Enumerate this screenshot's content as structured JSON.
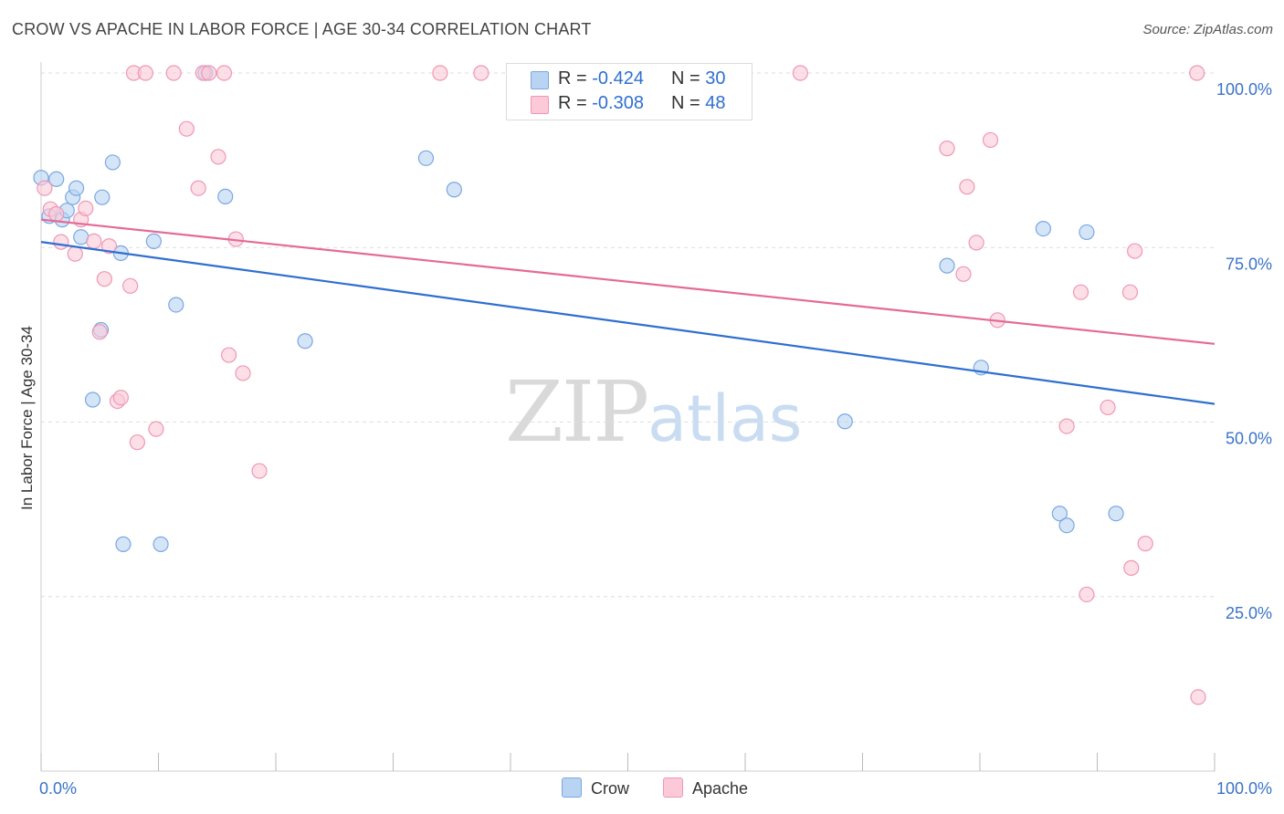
{
  "title": "CROW VS APACHE IN LABOR FORCE | AGE 30-34 CORRELATION CHART",
  "source": "Source: ZipAtlas.com",
  "watermark": {
    "zip": "ZIP",
    "atlas": "atlas"
  },
  "legend": {
    "rows": [
      {
        "r_label": "R = ",
        "r_value": "-0.424",
        "n_label": "N = ",
        "n_value": "30"
      },
      {
        "r_label": "R = ",
        "r_value": "-0.308",
        "n_label": "N = ",
        "n_value": "48"
      }
    ]
  },
  "colors": {
    "crow_fill": "#b9d3f3",
    "crow_stroke": "#7aa7e0",
    "crow_line": "#2f6fd0",
    "apache_fill": "#fbc9d8",
    "apache_stroke": "#ef97b4",
    "apache_line": "#e46b95",
    "tick_label": "#3a73c9",
    "grid": "#dddddd"
  },
  "chart_data": {
    "type": "scatter",
    "title": "CROW VS APACHE IN LABOR FORCE | AGE 30-34 CORRELATION CHART",
    "xlabel": "",
    "ylabel": "In Labor Force | Age 30-34",
    "xlim": [
      0,
      100
    ],
    "ylim": [
      0,
      100
    ],
    "x_tick_labels": [
      "0.0%",
      "100.0%"
    ],
    "y_ticks": [
      25,
      50,
      75,
      100
    ],
    "y_tick_labels": [
      "25.0%",
      "50.0%",
      "75.0%",
      "100.0%"
    ],
    "legend_position": "bottom-center",
    "series": [
      {
        "name": "Crow",
        "trend": {
          "x": [
            0,
            100
          ],
          "y": [
            75.8,
            52.6
          ]
        },
        "points": [
          {
            "x": 0.0,
            "y": 85.0
          },
          {
            "x": 1.3,
            "y": 84.8
          },
          {
            "x": 0.7,
            "y": 79.5
          },
          {
            "x": 1.8,
            "y": 79.0
          },
          {
            "x": 2.2,
            "y": 80.3
          },
          {
            "x": 2.7,
            "y": 82.2
          },
          {
            "x": 5.2,
            "y": 82.2
          },
          {
            "x": 3.0,
            "y": 83.5
          },
          {
            "x": 6.1,
            "y": 87.2
          },
          {
            "x": 3.4,
            "y": 76.5
          },
          {
            "x": 6.8,
            "y": 74.2
          },
          {
            "x": 9.6,
            "y": 75.9
          },
          {
            "x": 11.5,
            "y": 66.8
          },
          {
            "x": 5.1,
            "y": 63.2
          },
          {
            "x": 4.4,
            "y": 53.2
          },
          {
            "x": 7.0,
            "y": 32.5
          },
          {
            "x": 10.2,
            "y": 32.5
          },
          {
            "x": 14.0,
            "y": 100.0
          },
          {
            "x": 15.7,
            "y": 82.3
          },
          {
            "x": 22.5,
            "y": 61.6
          },
          {
            "x": 32.8,
            "y": 87.8
          },
          {
            "x": 35.2,
            "y": 83.3
          },
          {
            "x": 68.5,
            "y": 50.1
          },
          {
            "x": 77.2,
            "y": 72.4
          },
          {
            "x": 80.1,
            "y": 57.8
          },
          {
            "x": 85.4,
            "y": 77.7
          },
          {
            "x": 89.1,
            "y": 77.2
          },
          {
            "x": 86.8,
            "y": 36.9
          },
          {
            "x": 87.4,
            "y": 35.2
          },
          {
            "x": 91.6,
            "y": 36.9
          }
        ]
      },
      {
        "name": "Apache",
        "trend": {
          "x": [
            0,
            100
          ],
          "y": [
            79.0,
            61.2
          ]
        },
        "points": [
          {
            "x": 0.3,
            "y": 83.5
          },
          {
            "x": 0.8,
            "y": 80.5
          },
          {
            "x": 1.3,
            "y": 79.8
          },
          {
            "x": 1.7,
            "y": 75.8
          },
          {
            "x": 2.9,
            "y": 74.1
          },
          {
            "x": 3.4,
            "y": 79.0
          },
          {
            "x": 3.8,
            "y": 80.6
          },
          {
            "x": 4.5,
            "y": 75.9
          },
          {
            "x": 5.8,
            "y": 75.2
          },
          {
            "x": 5.4,
            "y": 70.5
          },
          {
            "x": 7.6,
            "y": 69.5
          },
          {
            "x": 5.0,
            "y": 62.9
          },
          {
            "x": 6.5,
            "y": 53.0
          },
          {
            "x": 6.8,
            "y": 53.5
          },
          {
            "x": 8.2,
            "y": 47.1
          },
          {
            "x": 9.8,
            "y": 49.0
          },
          {
            "x": 7.9,
            "y": 100.0
          },
          {
            "x": 8.9,
            "y": 100.0
          },
          {
            "x": 11.3,
            "y": 100.0
          },
          {
            "x": 13.8,
            "y": 100.0
          },
          {
            "x": 14.3,
            "y": 100.0
          },
          {
            "x": 15.6,
            "y": 100.0
          },
          {
            "x": 12.4,
            "y": 92.0
          },
          {
            "x": 15.1,
            "y": 88.0
          },
          {
            "x": 13.4,
            "y": 83.5
          },
          {
            "x": 16.6,
            "y": 76.2
          },
          {
            "x": 16.0,
            "y": 59.6
          },
          {
            "x": 17.2,
            "y": 57.0
          },
          {
            "x": 18.6,
            "y": 43.0
          },
          {
            "x": 34.0,
            "y": 100.0
          },
          {
            "x": 37.5,
            "y": 100.0
          },
          {
            "x": 64.7,
            "y": 100.0
          },
          {
            "x": 98.5,
            "y": 100.0
          },
          {
            "x": 77.2,
            "y": 89.2
          },
          {
            "x": 80.9,
            "y": 90.4
          },
          {
            "x": 78.9,
            "y": 83.7
          },
          {
            "x": 79.7,
            "y": 75.7
          },
          {
            "x": 78.6,
            "y": 71.2
          },
          {
            "x": 81.5,
            "y": 64.6
          },
          {
            "x": 88.6,
            "y": 68.6
          },
          {
            "x": 92.8,
            "y": 68.6
          },
          {
            "x": 93.2,
            "y": 74.5
          },
          {
            "x": 87.4,
            "y": 49.4
          },
          {
            "x": 90.9,
            "y": 52.1
          },
          {
            "x": 94.1,
            "y": 32.6
          },
          {
            "x": 92.9,
            "y": 29.1
          },
          {
            "x": 89.1,
            "y": 25.3
          },
          {
            "x": 98.6,
            "y": 10.6
          }
        ]
      }
    ]
  },
  "bottom_legend": {
    "crow_label": "Crow",
    "apache_label": "Apache"
  }
}
